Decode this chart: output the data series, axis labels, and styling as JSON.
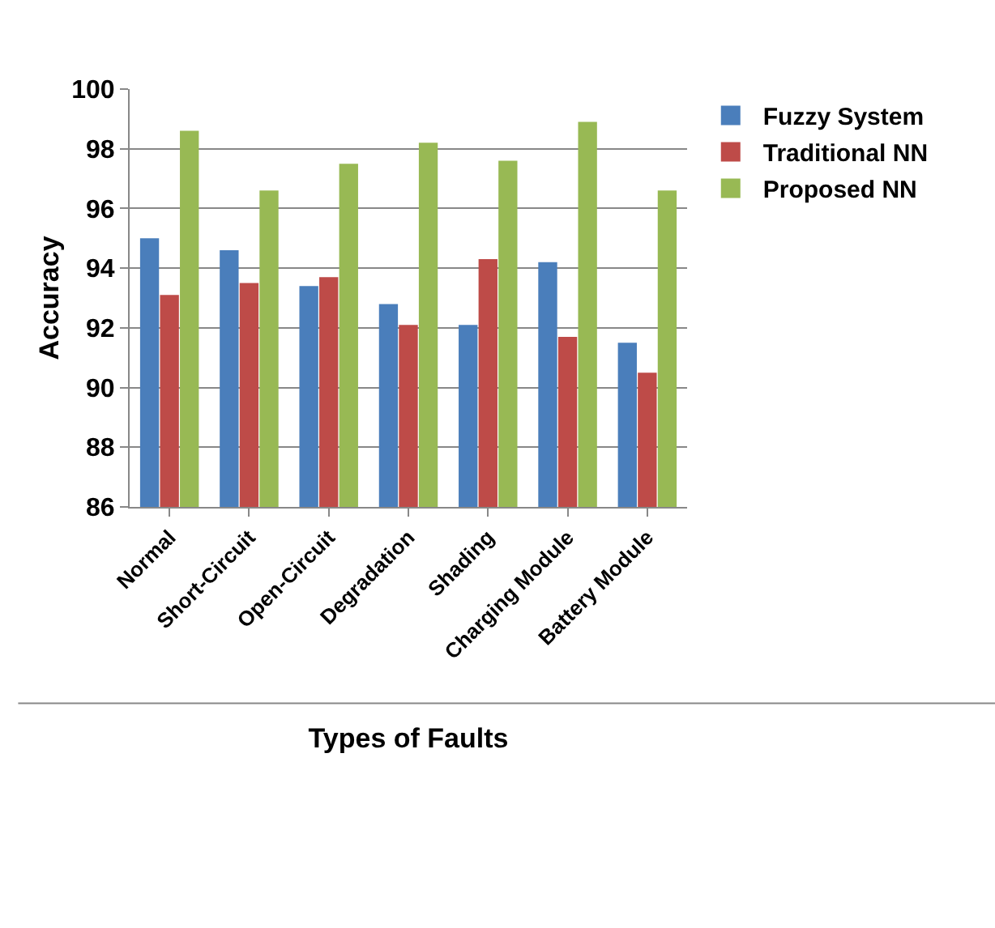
{
  "chart_data": {
    "type": "bar",
    "xlabel": "Types of Faults",
    "ylabel": "Accuracy",
    "categories": [
      "Normal",
      "Short-Circuit",
      "Open-Circuit",
      "Degradation",
      "Shading",
      "Charging Module",
      "Battery Module"
    ],
    "series": [
      {
        "name": "Fuzzy System",
        "color": "#4a7ebb",
        "values": [
          95.0,
          94.6,
          93.4,
          92.8,
          92.1,
          94.2,
          91.5
        ]
      },
      {
        "name": "Traditional NN",
        "color": "#be4b48",
        "values": [
          93.1,
          93.5,
          93.7,
          92.1,
          94.3,
          91.7,
          90.5
        ]
      },
      {
        "name": "Proposed NN",
        "color": "#98b954",
        "values": [
          98.6,
          96.6,
          97.5,
          98.2,
          97.6,
          98.9,
          96.6
        ]
      }
    ],
    "ylim": [
      86,
      100
    ],
    "yticks": [
      86,
      88,
      90,
      92,
      94,
      96,
      98,
      100
    ],
    "grid": "y",
    "legend": "top right"
  }
}
